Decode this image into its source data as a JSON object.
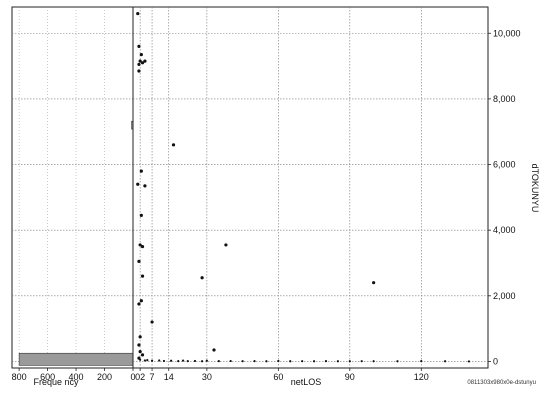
{
  "chart_data": [
    {
      "panel": "marginal-histogram",
      "type": "bar",
      "orientation": "horizontal",
      "xlabel": "Freque ncy",
      "x_ticks": [
        800,
        600,
        400,
        200,
        0
      ],
      "xlim": [
        850,
        0
      ],
      "ylim": [
        -200,
        10800
      ],
      "bars": [
        {
          "y_low": -120,
          "y_high": 250,
          "count": 800
        },
        {
          "y_low": 7080,
          "y_high": 7320,
          "count": 10
        }
      ],
      "grid": true
    },
    {
      "panel": "scatter",
      "type": "scatter",
      "xlabel": "netLOS",
      "ylabel": "dTOKUNYU",
      "x_ticks": [
        0,
        2,
        7,
        14,
        30,
        60,
        90,
        120
      ],
      "x_tick_labels": [
        "02",
        "7",
        "14",
        "30",
        "60",
        "90",
        "120"
      ],
      "y_ticks": [
        0,
        2000,
        4000,
        6000,
        8000,
        10000
      ],
      "y_tick_labels": [
        "0",
        "2,000",
        "4,000",
        "6,000",
        "8,000",
        "10,000"
      ],
      "xlim": [
        -1,
        148
      ],
      "ylim": [
        -200,
        10800
      ],
      "grid": true,
      "points": [
        [
          1,
          10600
        ],
        [
          1.5,
          9600
        ],
        [
          2.5,
          9350
        ],
        [
          2,
          9150
        ],
        [
          3,
          9100
        ],
        [
          1.5,
          9050
        ],
        [
          4,
          9150
        ],
        [
          1.5,
          8850
        ],
        [
          2.5,
          5800
        ],
        [
          1,
          5400
        ],
        [
          4,
          5350
        ],
        [
          2.5,
          4450
        ],
        [
          2,
          3550
        ],
        [
          3,
          3500
        ],
        [
          1.5,
          3050
        ],
        [
          3,
          2600
        ],
        [
          2.5,
          1850
        ],
        [
          1.5,
          1750
        ],
        [
          7,
          1200
        ],
        [
          16,
          6600
        ],
        [
          38,
          3550
        ],
        [
          28,
          2550
        ],
        [
          100,
          2400
        ],
        [
          33,
          350
        ],
        [
          2,
          750
        ],
        [
          1.5,
          500
        ],
        [
          2,
          300
        ],
        [
          3,
          200
        ],
        [
          1.5,
          100
        ],
        [
          2,
          50
        ],
        [
          4,
          30
        ],
        [
          5,
          40
        ],
        [
          7,
          20
        ],
        [
          10,
          30
        ],
        [
          12,
          15
        ],
        [
          15,
          20
        ],
        [
          18,
          10
        ],
        [
          20,
          25
        ],
        [
          22,
          10
        ],
        [
          25,
          15
        ],
        [
          28,
          5
        ],
        [
          30,
          20
        ],
        [
          35,
          10
        ],
        [
          40,
          12
        ],
        [
          45,
          8
        ],
        [
          50,
          10
        ],
        [
          55,
          5
        ],
        [
          60,
          15
        ],
        [
          65,
          5
        ],
        [
          70,
          8
        ],
        [
          75,
          5
        ],
        [
          80,
          10
        ],
        [
          85,
          5
        ],
        [
          90,
          5
        ],
        [
          95,
          8
        ],
        [
          100,
          5
        ],
        [
          110,
          5
        ],
        [
          120,
          10
        ],
        [
          130,
          5
        ],
        [
          140,
          0
        ]
      ]
    }
  ],
  "caption": "0811303x980x0e-dstunyu"
}
